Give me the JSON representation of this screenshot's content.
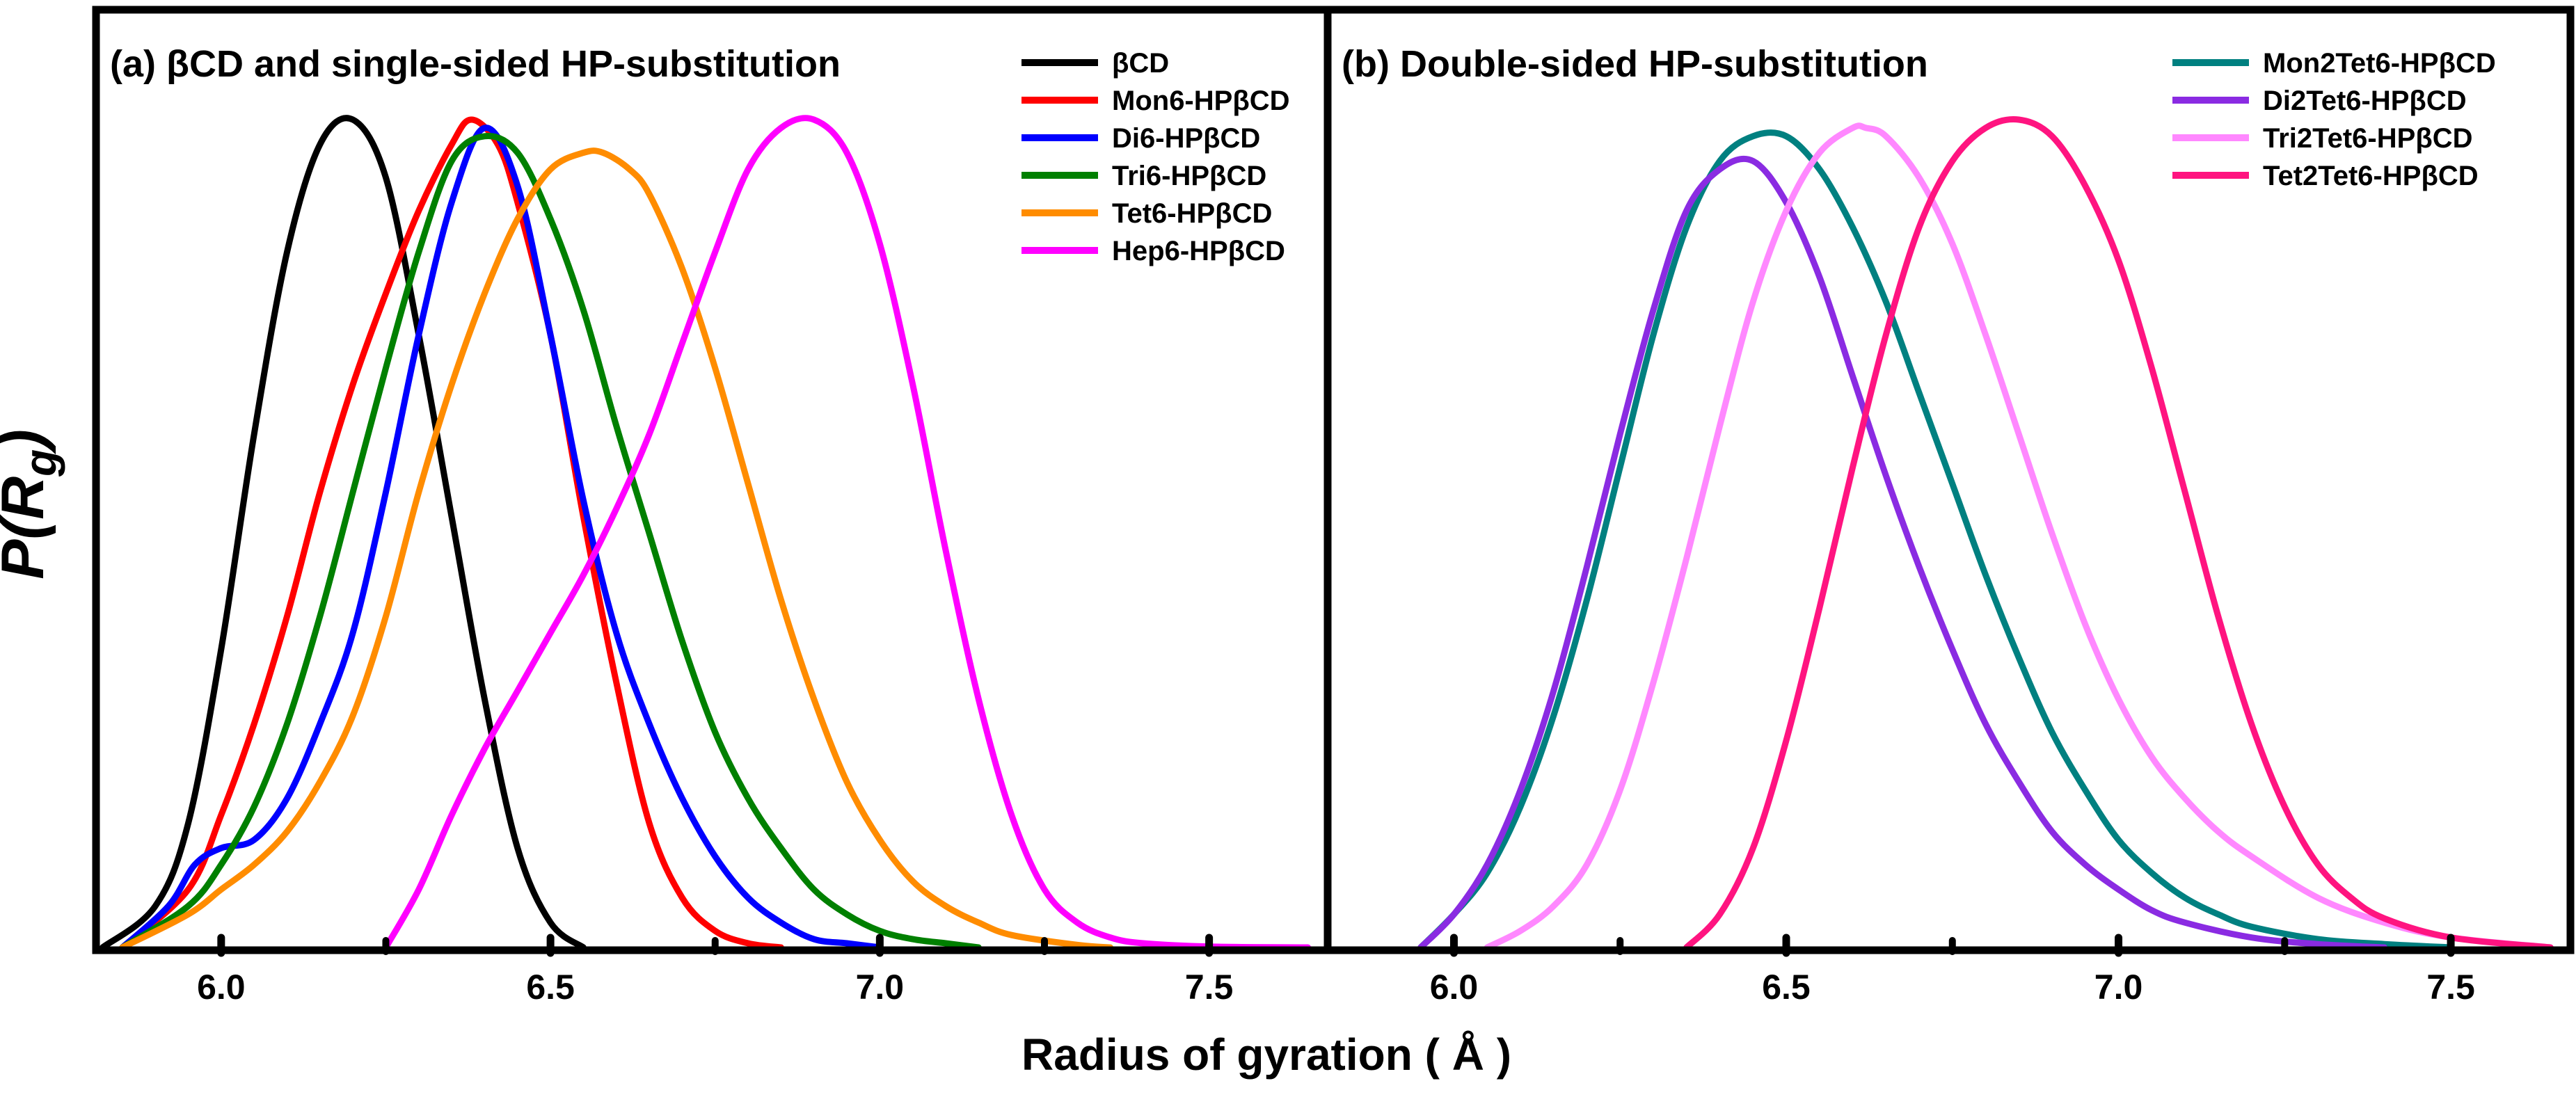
{
  "figure": {
    "ylabel": "P(Rg)",
    "ylabel_main": "P(",
    "ylabel_sub_R": "R",
    "ylabel_sub_g": "g",
    "ylabel_close": ")",
    "xlabel": "Radius of gyration ( Å )"
  },
  "chart_data": [
    {
      "type": "line",
      "panel": "a",
      "title": "(a) βCD and single-sided HP-substitution",
      "xlabel": "Radius of gyration ( Å )",
      "ylabel": "P(Rg)",
      "xlim": [
        5.81,
        7.68
      ],
      "ylim": [
        0,
        1.0
      ],
      "xticks": [
        "6.0",
        "6.5",
        "7.0",
        "7.5"
      ],
      "grid": false,
      "legend_position": "top-right",
      "series": [
        {
          "name": "βCD",
          "color": "#000000",
          "x": [
            5.82,
            5.9,
            5.95,
            6.0,
            6.05,
            6.1,
            6.15,
            6.2,
            6.25,
            6.3,
            6.35,
            6.4,
            6.45,
            6.5,
            6.55
          ],
          "y": [
            0.0,
            0.05,
            0.15,
            0.36,
            0.62,
            0.84,
            0.97,
            1.0,
            0.93,
            0.74,
            0.52,
            0.3,
            0.12,
            0.03,
            0.0
          ]
        },
        {
          "name": "Mon6-HPβCD",
          "color": "#ff0000",
          "x": [
            5.85,
            5.95,
            6.0,
            6.05,
            6.1,
            6.15,
            6.2,
            6.25,
            6.3,
            6.35,
            6.38,
            6.42,
            6.45,
            6.5,
            6.55,
            6.6,
            6.65,
            6.7,
            6.75,
            6.8,
            6.85
          ],
          "y": [
            0.0,
            0.07,
            0.16,
            0.27,
            0.4,
            0.55,
            0.68,
            0.79,
            0.89,
            0.97,
            1.0,
            0.97,
            0.9,
            0.74,
            0.52,
            0.32,
            0.15,
            0.06,
            0.02,
            0.005,
            0.0
          ]
        },
        {
          "name": "Di6-HPβCD",
          "color": "#0000ff",
          "x": [
            5.85,
            5.92,
            5.96,
            6.0,
            6.05,
            6.1,
            6.15,
            6.2,
            6.25,
            6.3,
            6.35,
            6.4,
            6.45,
            6.5,
            6.55,
            6.6,
            6.65,
            6.7,
            6.75,
            6.8,
            6.85,
            6.9,
            6.95,
            7.0
          ],
          "y": [
            0.0,
            0.05,
            0.1,
            0.12,
            0.13,
            0.18,
            0.27,
            0.38,
            0.55,
            0.74,
            0.9,
            0.99,
            0.92,
            0.74,
            0.54,
            0.38,
            0.27,
            0.18,
            0.11,
            0.06,
            0.03,
            0.01,
            0.005,
            0.0
          ]
        },
        {
          "name": "Tri6-HPβCD",
          "color": "#008000",
          "x": [
            5.85,
            5.95,
            6.0,
            6.05,
            6.1,
            6.15,
            6.2,
            6.25,
            6.3,
            6.35,
            6.4,
            6.45,
            6.5,
            6.55,
            6.6,
            6.65,
            6.7,
            6.75,
            6.8,
            6.85,
            6.9,
            6.95,
            7.0,
            7.05,
            7.1,
            7.15
          ],
          "y": [
            0.0,
            0.05,
            0.1,
            0.17,
            0.27,
            0.4,
            0.55,
            0.7,
            0.84,
            0.95,
            0.98,
            0.96,
            0.88,
            0.77,
            0.63,
            0.5,
            0.37,
            0.26,
            0.18,
            0.12,
            0.07,
            0.04,
            0.02,
            0.01,
            0.005,
            0.0
          ]
        },
        {
          "name": "Tet6-HPβCD",
          "color": "#ff8c00",
          "x": [
            5.85,
            5.95,
            6.0,
            6.05,
            6.1,
            6.15,
            6.2,
            6.25,
            6.3,
            6.35,
            6.4,
            6.45,
            6.5,
            6.55,
            6.58,
            6.62,
            6.65,
            6.7,
            6.75,
            6.8,
            6.85,
            6.9,
            6.95,
            7.0,
            7.05,
            7.1,
            7.15,
            7.2,
            7.3,
            7.35
          ],
          "y": [
            0.0,
            0.04,
            0.07,
            0.1,
            0.14,
            0.2,
            0.28,
            0.4,
            0.55,
            0.68,
            0.79,
            0.88,
            0.94,
            0.96,
            0.96,
            0.94,
            0.91,
            0.82,
            0.7,
            0.56,
            0.42,
            0.3,
            0.2,
            0.13,
            0.08,
            0.05,
            0.03,
            0.015,
            0.003,
            0.0
          ]
        },
        {
          "name": "Hep6-HPβCD",
          "color": "#ff00ff",
          "x": [
            6.25,
            6.3,
            6.35,
            6.4,
            6.45,
            6.5,
            6.55,
            6.6,
            6.65,
            6.7,
            6.75,
            6.8,
            6.85,
            6.9,
            6.95,
            7.0,
            7.05,
            7.1,
            7.15,
            7.2,
            7.25,
            7.3,
            7.35,
            7.4,
            7.5,
            7.65
          ],
          "y": [
            0.0,
            0.07,
            0.16,
            0.24,
            0.31,
            0.38,
            0.45,
            0.53,
            0.62,
            0.73,
            0.84,
            0.94,
            0.99,
            1.0,
            0.96,
            0.85,
            0.68,
            0.48,
            0.3,
            0.16,
            0.07,
            0.03,
            0.012,
            0.005,
            0.001,
            0.0
          ]
        }
      ]
    },
    {
      "type": "line",
      "panel": "b",
      "title": "(b) Double-sided HP-substitution",
      "xlabel": "Radius of gyration ( Å )",
      "ylabel": "P(Rg)",
      "xlim": [
        5.81,
        7.68
      ],
      "ylim": [
        0,
        1.0
      ],
      "xticks": [
        "6.0",
        "6.5",
        "7.0",
        "7.5"
      ],
      "grid": false,
      "legend_position": "top-right",
      "series": [
        {
          "name": "Mon2Tet6-HPβCD",
          "color": "#008080",
          "x": [
            5.95,
            6.0,
            6.05,
            6.1,
            6.15,
            6.2,
            6.25,
            6.3,
            6.35,
            6.4,
            6.45,
            6.5,
            6.55,
            6.6,
            6.65,
            6.7,
            6.75,
            6.8,
            6.85,
            6.9,
            6.95,
            7.0,
            7.05,
            7.1,
            7.15,
            7.2,
            7.3,
            7.4,
            7.5
          ],
          "y": [
            0.0,
            0.04,
            0.09,
            0.17,
            0.28,
            0.42,
            0.58,
            0.74,
            0.87,
            0.95,
            0.98,
            0.98,
            0.94,
            0.87,
            0.78,
            0.67,
            0.56,
            0.45,
            0.35,
            0.26,
            0.19,
            0.13,
            0.09,
            0.06,
            0.04,
            0.025,
            0.01,
            0.004,
            0.0
          ]
        },
        {
          "name": "Di2Tet6-HPβCD",
          "color": "#8a2be2",
          "x": [
            5.95,
            6.0,
            6.05,
            6.1,
            6.15,
            6.2,
            6.25,
            6.3,
            6.35,
            6.4,
            6.45,
            6.5,
            6.55,
            6.6,
            6.65,
            6.7,
            6.75,
            6.8,
            6.85,
            6.9,
            6.95,
            7.0,
            7.05,
            7.1,
            7.2,
            7.3,
            7.4
          ],
          "y": [
            0.0,
            0.04,
            0.1,
            0.19,
            0.31,
            0.46,
            0.62,
            0.77,
            0.89,
            0.94,
            0.95,
            0.9,
            0.81,
            0.69,
            0.57,
            0.46,
            0.36,
            0.27,
            0.2,
            0.14,
            0.1,
            0.07,
            0.045,
            0.03,
            0.012,
            0.004,
            0.0
          ]
        },
        {
          "name": "Tri2Tet6-HPβCD",
          "color": "#ff88ff",
          "x": [
            6.05,
            6.1,
            6.15,
            6.2,
            6.25,
            6.3,
            6.35,
            6.4,
            6.45,
            6.5,
            6.55,
            6.6,
            6.62,
            6.65,
            6.7,
            6.75,
            6.8,
            6.85,
            6.9,
            6.95,
            7.0,
            7.05,
            7.1,
            7.15,
            7.2,
            7.3,
            7.4,
            7.5,
            7.65
          ],
          "y": [
            0.0,
            0.02,
            0.05,
            0.1,
            0.19,
            0.32,
            0.47,
            0.63,
            0.78,
            0.89,
            0.96,
            0.99,
            0.99,
            0.98,
            0.93,
            0.85,
            0.74,
            0.62,
            0.5,
            0.39,
            0.3,
            0.23,
            0.18,
            0.14,
            0.11,
            0.06,
            0.03,
            0.012,
            0.0
          ]
        },
        {
          "name": "Tet2Tet6-HPβCD",
          "color": "#ff1480",
          "x": [
            6.35,
            6.4,
            6.45,
            6.5,
            6.55,
            6.6,
            6.65,
            6.7,
            6.75,
            6.8,
            6.85,
            6.9,
            6.95,
            7.0,
            7.05,
            7.1,
            7.15,
            7.2,
            7.25,
            7.3,
            7.35,
            7.4,
            7.5,
            7.65
          ],
          "y": [
            0.0,
            0.04,
            0.12,
            0.25,
            0.41,
            0.58,
            0.74,
            0.87,
            0.95,
            0.99,
            1.0,
            0.98,
            0.92,
            0.83,
            0.7,
            0.55,
            0.4,
            0.27,
            0.17,
            0.1,
            0.06,
            0.035,
            0.012,
            0.0
          ]
        }
      ]
    }
  ]
}
